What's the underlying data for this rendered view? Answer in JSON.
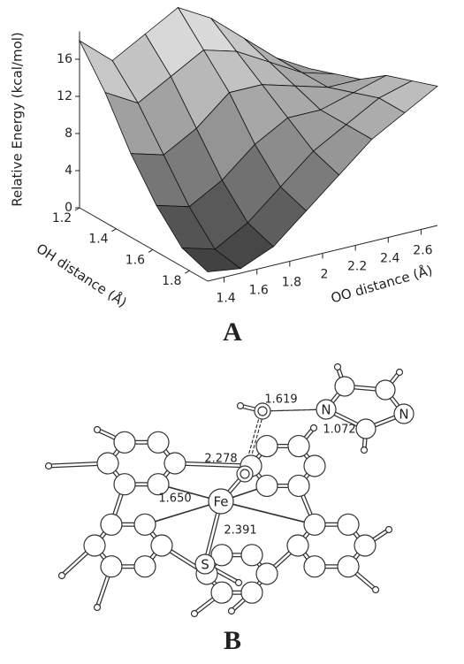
{
  "figure": {
    "panel_a": {
      "caption": "A",
      "z_title": "Relative Energy (kcal/mol)",
      "oh_title": "OH distance (Å)",
      "oo_title": "OO distance (Å)",
      "zlim": [
        0,
        19
      ],
      "zticks": [
        0,
        4,
        8,
        12,
        16
      ],
      "ohlim": [
        1.2,
        1.9
      ],
      "ohticks": [
        1.2,
        1.4,
        1.6,
        1.8
      ],
      "oolim": [
        1.3,
        2.7
      ],
      "ooticks": [
        1.4,
        1.6,
        1.8,
        2,
        2.2,
        2.4,
        2.6
      ],
      "surface": {
        "oh": [
          1.2,
          1.34,
          1.48,
          1.62,
          1.76,
          1.9
        ],
        "oo": [
          1.3,
          1.5,
          1.7,
          1.9,
          2.1,
          2.3,
          2.5,
          2.7
        ],
        "energy": [
          [
            18,
            15,
            17,
            19,
            17,
            14,
            11,
            9
          ],
          [
            14,
            12,
            14,
            16,
            15,
            13,
            11,
            10
          ],
          [
            9,
            8,
            10,
            13,
            13,
            12,
            11,
            11
          ],
          [
            5,
            4,
            6,
            9,
            11,
            11,
            12,
            13
          ],
          [
            2,
            1,
            3,
            6,
            9,
            11,
            13,
            14
          ],
          [
            1,
            0.5,
            2,
            5,
            8,
            11,
            13,
            15
          ]
        ]
      }
    },
    "panel_b": {
      "caption": "B",
      "atoms": {
        "fe": "Fe",
        "s": "S",
        "n1": "N",
        "n2": "N"
      },
      "distances": [
        "1.619",
        "1.072",
        "2.278",
        "1.650",
        "2.391"
      ]
    }
  }
}
